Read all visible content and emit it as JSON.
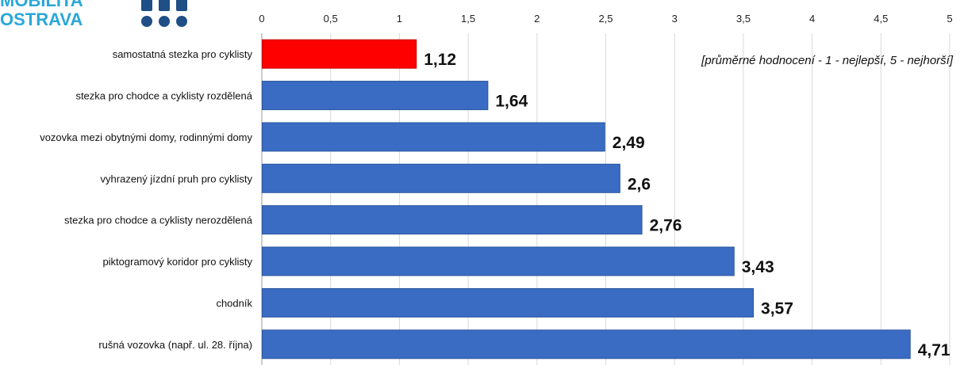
{
  "logo": {
    "line1": "MOBILITA",
    "line2": "OSTRAVA",
    "color": "#2aa7d9",
    "mark_color": "#1f4f86"
  },
  "chart_data": {
    "type": "bar",
    "orientation": "horizontal",
    "categories": [
      "samostatná stezka pro cyklisty",
      "stezka pro chodce a cyklisty rozdělená",
      "vozovka mezi obytnými domy, rodinnými domy",
      "vyhrazený jízdní pruh pro cyklisty",
      "stezka pro chodce a cyklisty nerozdělená",
      "piktogramový koridor pro cyklisty",
      "chodník",
      "rušná vozovka (např. ul. 28. října)"
    ],
    "values": [
      1.12,
      1.64,
      2.49,
      2.6,
      2.76,
      3.43,
      3.57,
      4.71
    ],
    "value_labels": [
      "1,12",
      "1,64",
      "2,49",
      "2,6",
      "2,76",
      "3,43",
      "3,57",
      "4,71"
    ],
    "bar_colors": [
      "#ff0000",
      "#3b6cc4",
      "#3b6cc4",
      "#3b6cc4",
      "#3b6cc4",
      "#3b6cc4",
      "#3b6cc4",
      "#3b6cc4"
    ],
    "xlim": [
      0,
      5
    ],
    "x_ticks": [
      0,
      0.5,
      1,
      1.5,
      2,
      2.5,
      3,
      3.5,
      4,
      4.5,
      5
    ],
    "x_tick_labels": [
      "0",
      "0,5",
      "1",
      "1,5",
      "2",
      "2,5",
      "3",
      "3,5",
      "4",
      "4,5",
      "5"
    ],
    "x_axis_position": "top",
    "grid": true,
    "annotation": "[průměrné hodnocení - 1 - nejlepší, 5 - nejhorší]",
    "title": "",
    "xlabel": "",
    "ylabel": ""
  }
}
